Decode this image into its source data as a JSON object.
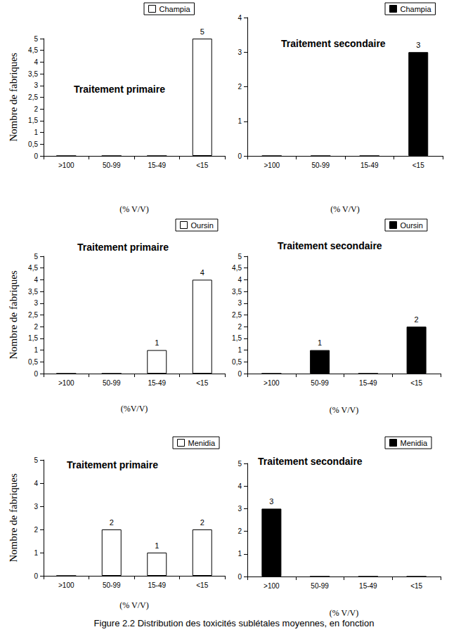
{
  "chart_data": [
    {
      "type": "bar",
      "title": "Traitement primaire",
      "x_label": "(% V/V)",
      "y_label": "Nombre de fabriques",
      "categories": [
        ">100",
        "50-99",
        "15-49",
        "<15"
      ],
      "series": [
        {
          "name": "Champia",
          "color": "#ffffff",
          "values": [
            0,
            0,
            0,
            5
          ]
        }
      ],
      "ylim": [
        0,
        5
      ],
      "yticks": [
        0,
        {
          "value": 0.5,
          "label": "0,5"
        },
        1,
        {
          "value": 1.5,
          "label": "1,5"
        },
        2,
        {
          "value": 2.5,
          "label": "2,5"
        },
        3,
        {
          "value": 3.5,
          "label": "3,5"
        },
        4,
        {
          "value": 4.5,
          "label": "4,5"
        },
        5
      ],
      "data_labels": true,
      "grid": false
    },
    {
      "type": "bar",
      "title": "Traitement secondaire",
      "x_label": "(% V/V)",
      "categories": [
        ">100",
        "50-99",
        "15-49",
        "<15"
      ],
      "series": [
        {
          "name": "Champia",
          "color": "#000000",
          "values": [
            0,
            0,
            0,
            3
          ]
        }
      ],
      "ylim": [
        0,
        4
      ],
      "yticks": [
        0,
        1,
        2,
        3,
        4
      ],
      "data_labels": true,
      "grid": false
    },
    {
      "type": "bar",
      "title": "Traitement primaire",
      "x_label": "(%V/V)",
      "y_label": "Nombre de fabriques",
      "categories": [
        ">100",
        "50-99",
        "15-49",
        "<15"
      ],
      "series": [
        {
          "name": "Oursin",
          "color": "#ffffff",
          "values": [
            0,
            0,
            1,
            4
          ]
        }
      ],
      "ylim": [
        0,
        5
      ],
      "yticks": [
        0,
        {
          "value": 0.5,
          "label": "0,5"
        },
        1,
        {
          "value": 1.5,
          "label": "1,5"
        },
        2,
        {
          "value": 2.5,
          "label": "2,5"
        },
        3,
        {
          "value": 3.5,
          "label": "3,5"
        },
        4,
        {
          "value": 4.5,
          "label": "4,5"
        },
        5
      ],
      "data_labels": true,
      "grid": false
    },
    {
      "type": "bar",
      "title": "Traitement secondaire",
      "x_label": "(% V/V)",
      "categories": [
        ">100",
        "50-99",
        "15-49",
        "<15"
      ],
      "series": [
        {
          "name": "Oursin",
          "color": "#000000",
          "values": [
            0,
            1,
            0,
            2
          ]
        }
      ],
      "ylim": [
        0,
        5
      ],
      "yticks": [
        0,
        {
          "value": 0.5,
          "label": "0,5"
        },
        1,
        {
          "value": 1.5,
          "label": "1,5"
        },
        2,
        {
          "value": 2.5,
          "label": "2,5"
        },
        3,
        {
          "value": 3.5,
          "label": "3,5"
        },
        4,
        {
          "value": 4.5,
          "label": "4,5"
        },
        5
      ],
      "data_labels": true,
      "grid": false
    },
    {
      "type": "bar",
      "title": "Traitement primaire",
      "x_label": "(% V/V)",
      "y_label": "Nombre de fabriques",
      "categories": [
        ">100",
        "50-99",
        "15-49",
        "<15"
      ],
      "series": [
        {
          "name": "Menidia",
          "color": "#ffffff",
          "values": [
            0,
            2,
            1,
            2
          ]
        }
      ],
      "ylim": [
        0,
        5
      ],
      "yticks": [
        0,
        1,
        2,
        3,
        4,
        5
      ],
      "data_labels": true,
      "grid": false
    },
    {
      "type": "bar",
      "title": "Traitement secondaire",
      "x_label": "(% V/V)",
      "categories": [
        ">100",
        "50-99",
        "15-49",
        "<15"
      ],
      "series": [
        {
          "name": "Menidia",
          "color": "#000000",
          "values": [
            3,
            0,
            0,
            0
          ]
        }
      ],
      "ylim": [
        0,
        5
      ],
      "yticks": [
        0,
        1,
        2,
        3,
        4,
        5
      ],
      "data_labels": true,
      "grid": false
    }
  ],
  "caption": "Figure 2.2 Distribution des toxicités sublétales moyennes, en fonction"
}
